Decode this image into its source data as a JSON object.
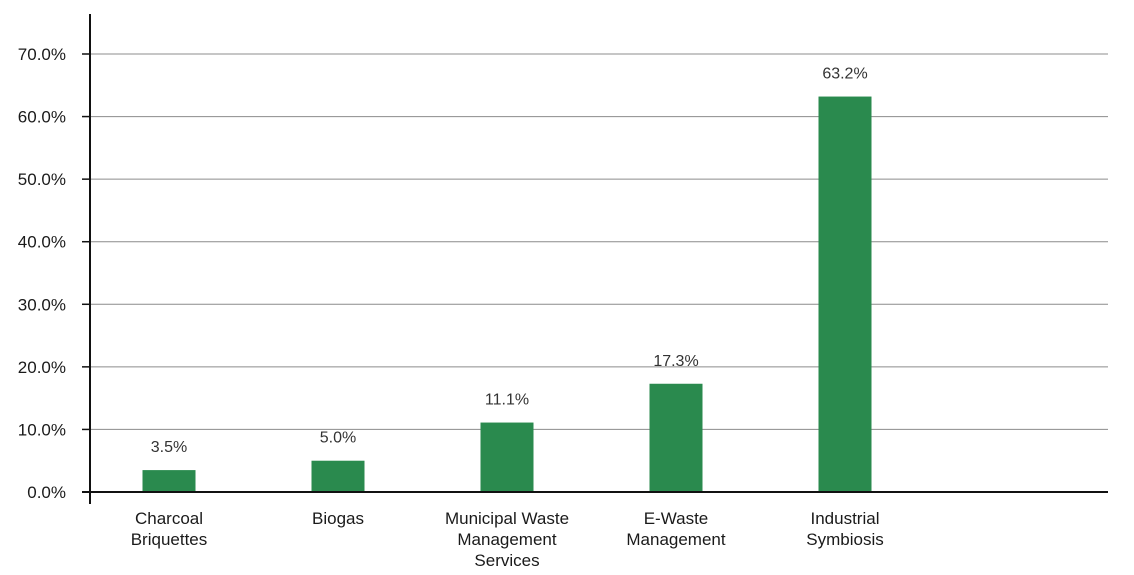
{
  "chart_data": {
    "type": "bar",
    "categories": [
      [
        "Charcoal",
        "Briquettes"
      ],
      [
        "Biogas"
      ],
      [
        "Municipal Waste",
        "Management",
        "Services"
      ],
      [
        "E-Waste",
        "Management"
      ],
      [
        "Industrial",
        "Symbiosis"
      ]
    ],
    "values": [
      3.5,
      5.0,
      11.1,
      17.3,
      63.2
    ],
    "data_labels": [
      "3.5%",
      "5.0%",
      "11.1%",
      "17.3%",
      "63.2%"
    ],
    "y_ticks": [
      "0.0%",
      "10.0%",
      "20.0%",
      "30.0%",
      "40.0%",
      "50.0%",
      "60.0%",
      "70.0%"
    ],
    "ylim": [
      0,
      70
    ],
    "grid": true,
    "legend": "none",
    "bar_color": "#2a8a4e"
  }
}
